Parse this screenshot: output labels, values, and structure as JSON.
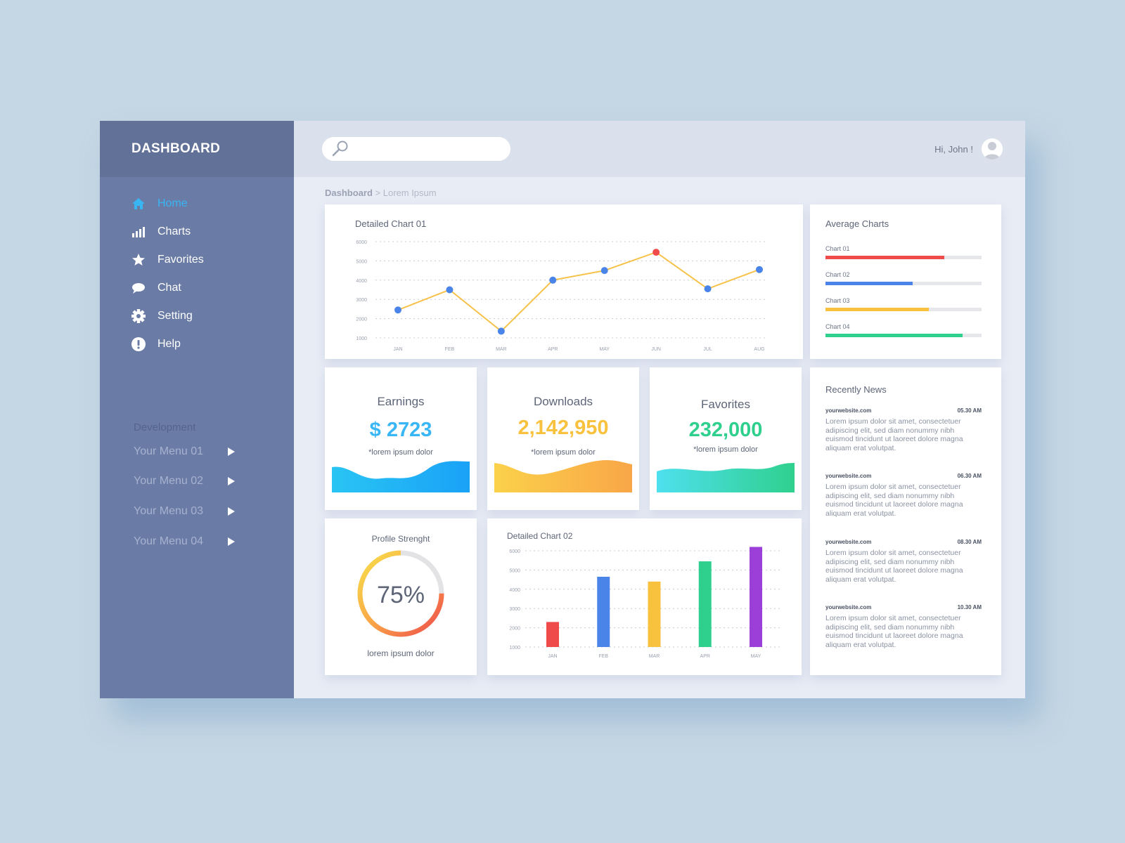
{
  "app": {
    "title": "DASHBOARD"
  },
  "sidebar": {
    "items": [
      {
        "label": "Home",
        "icon": "home-icon",
        "active": true
      },
      {
        "label": "Charts",
        "icon": "bar-chart-icon",
        "active": false
      },
      {
        "label": "Favorites",
        "icon": "star-icon",
        "active": false
      },
      {
        "label": "Chat",
        "icon": "chat-bubble-icon",
        "active": false
      },
      {
        "label": "Setting",
        "icon": "gear-icon",
        "active": false
      },
      {
        "label": "Help",
        "icon": "alert-icon",
        "active": false
      }
    ],
    "section_title": "Development",
    "menus": [
      "Your Menu 01",
      "Your Menu 02",
      "Your Menu 03",
      "Your Menu 04"
    ]
  },
  "topbar": {
    "search_placeholder": "",
    "greeting": "Hi, John !"
  },
  "breadcrumb": {
    "root": "Dashboard",
    "separator": " > ",
    "current": "Lorem Ipsum"
  },
  "colors": {
    "accent": "#39b5f4",
    "earnings": "#38b6f5",
    "downloads": "#f8c23f",
    "favorites": "#2fd08e",
    "line": "#f6c24a",
    "point": "#4a84e8",
    "peak": "#ef4b4b"
  },
  "cards": {
    "detailed_chart_1": {
      "title": "Detailed Chart 01"
    },
    "average": {
      "title": "Average Charts",
      "bars": [
        {
          "label": "Chart 01",
          "value": 0.76,
          "color": "#ef4b4b"
        },
        {
          "label": "Chart 02",
          "value": 0.56,
          "color": "#4a84e8"
        },
        {
          "label": "Chart 03",
          "value": 0.66,
          "color": "#f8c23f"
        },
        {
          "label": "Chart 04",
          "value": 0.88,
          "color": "#2fd08e"
        }
      ]
    },
    "earnings": {
      "title": "Earnings",
      "value": "$ 2723",
      "sub": "*lorem ipsum dolor"
    },
    "downloads": {
      "title": "Downloads",
      "value": "2,142,950",
      "sub": "*lorem ipsum dolor"
    },
    "favorites": {
      "title": "Favorites",
      "value": "232,000",
      "sub": "*lorem ipsum dolor"
    },
    "profile": {
      "title": "Profile Strenght",
      "value": "75%",
      "fraction": 0.75,
      "sub": "lorem ipsum dolor"
    },
    "detailed_chart_2": {
      "title": "Detailed Chart 02"
    },
    "news": {
      "title": "Recently News",
      "items": [
        {
          "source": "yourwebsite.com",
          "time": "05.30 AM",
          "text": "Lorem ipsum dolor sit amet, consectetuer adipiscing elit, sed diam nonummy nibh euismod tincidunt ut laoreet dolore magna aliquam erat volutpat."
        },
        {
          "source": "yourwebsite.com",
          "time": "06.30 AM",
          "text": "Lorem ipsum dolor sit amet, consectetuer adipiscing elit, sed diam nonummy nibh euismod tincidunt ut laoreet dolore magna aliquam erat volutpat."
        },
        {
          "source": "yourwebsite.com",
          "time": "08.30 AM",
          "text": "Lorem ipsum dolor sit amet, consectetuer adipiscing elit, sed diam nonummy nibh euismod tincidunt ut laoreet dolore magna aliquam erat volutpat."
        },
        {
          "source": "yourwebsite.com",
          "time": "10.30 AM",
          "text": "Lorem ipsum dolor sit amet, consectetuer adipiscing elit, sed diam nonummy nibh euismod tincidunt ut laoreet dolore magna aliquam erat volutpat."
        }
      ]
    }
  },
  "chart_data": [
    {
      "type": "line",
      "title": "Detailed Chart 01",
      "categories": [
        "JAN",
        "FEB",
        "MAR",
        "APR",
        "MAY",
        "JUN",
        "JUL",
        "AUG"
      ],
      "values": [
        2450,
        3500,
        1350,
        4000,
        4500,
        5450,
        3550,
        4550
      ],
      "yticks": [
        1000,
        2000,
        3000,
        4000,
        5000,
        6000
      ],
      "ylim": [
        1000,
        6000
      ],
      "highlight_index": 5,
      "grid": true
    },
    {
      "type": "bar",
      "title": "Detailed Chart 02",
      "categories": [
        "JAN",
        "FEB",
        "MAR",
        "APR",
        "MAY"
      ],
      "values": [
        2300,
        4650,
        4400,
        5450,
        6200
      ],
      "colors": [
        "#ef4b4b",
        "#4a84e8",
        "#f8c23f",
        "#2fd08e",
        "#9b3fd8"
      ],
      "yticks": [
        1000,
        2000,
        3000,
        4000,
        5000,
        6000
      ],
      "ylim": [
        1000,
        6000
      ],
      "grid": true
    }
  ]
}
